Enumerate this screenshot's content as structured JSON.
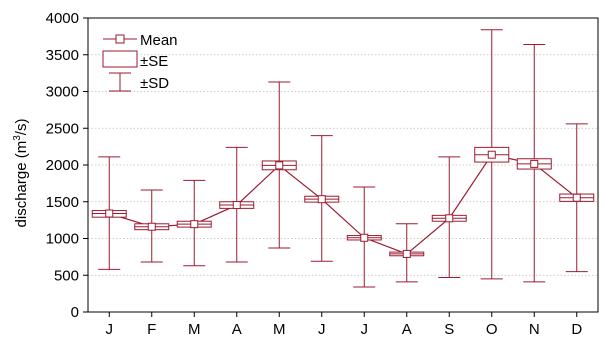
{
  "chart_data": {
    "type": "box",
    "categories": [
      "J",
      "F",
      "M",
      "A",
      "M",
      "J",
      "J",
      "A",
      "S",
      "O",
      "N",
      "D"
    ],
    "ylabel": "discharge (m",
    "ylabel_sup": "3",
    "ylabel_end": "/s)",
    "ylim": [
      0,
      4000
    ],
    "yticks": [
      0,
      500,
      1000,
      1500,
      2000,
      2500,
      3000,
      3500,
      4000
    ],
    "grid": true,
    "legend_position": "top-left",
    "color": "#9b1b30",
    "series": [
      {
        "name": "Mean",
        "values": [
          1340,
          1160,
          1195,
          1455,
          1995,
          1535,
          1010,
          790,
          1275,
          2140,
          2015,
          1555
        ]
      },
      {
        "name": "±SE",
        "low": [
          1290,
          1120,
          1155,
          1410,
          1935,
          1495,
          980,
          765,
          1235,
          2040,
          1945,
          1505
        ],
        "high": [
          1380,
          1200,
          1235,
          1500,
          2055,
          1575,
          1040,
          815,
          1315,
          2240,
          2085,
          1605
        ]
      },
      {
        "name": "±SD",
        "low": [
          580,
          680,
          630,
          680,
          870,
          690,
          340,
          410,
          470,
          450,
          410,
          550
        ],
        "high": [
          2110,
          1660,
          1790,
          2240,
          3130,
          2400,
          1700,
          1200,
          2110,
          3840,
          3640,
          2560
        ]
      }
    ]
  }
}
